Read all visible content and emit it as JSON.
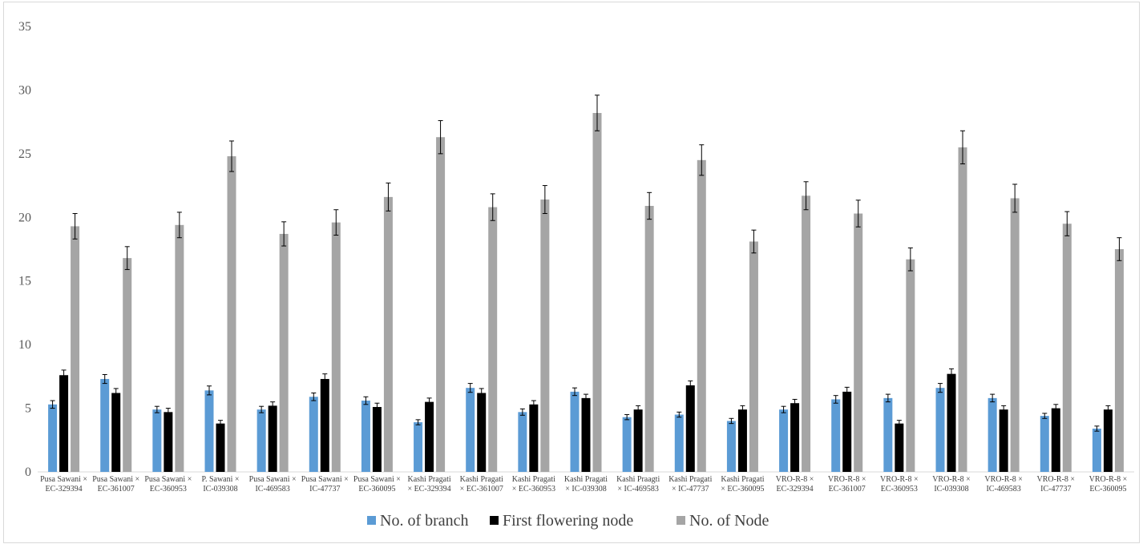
{
  "chart_data": {
    "type": "bar",
    "categories": [
      [
        "Pusa Sawani ×",
        "EC-329394"
      ],
      [
        "Pusa Sawani ×",
        "EC-361007"
      ],
      [
        "Pusa Sawani ×",
        "EC-360953"
      ],
      [
        "P. Sawani ×",
        "IC-039308"
      ],
      [
        "Pusa Sawani ×",
        "IC-469583"
      ],
      [
        "Pusa Sawani ×",
        "IC-47737"
      ],
      [
        "Pusa Sawani ×",
        "EC-360095"
      ],
      [
        "Kashi Pragati",
        "× EC-329394"
      ],
      [
        "Kashi Pragati",
        "× EC-361007"
      ],
      [
        "Kashi Pragati",
        "× EC-360953"
      ],
      [
        "Kashi Pragati",
        "× IC-039308"
      ],
      [
        "Kashi Praagti",
        "× IC-469583"
      ],
      [
        "Kashi Pragati",
        "× IC-47737"
      ],
      [
        "Kashi Pragati",
        "× EC-360095"
      ],
      [
        "VRO-R-8 ×",
        "EC-329394"
      ],
      [
        "VRO-R-8 ×",
        "EC-361007"
      ],
      [
        "VRO-R-8 ×",
        "EC-360953"
      ],
      [
        "VRO-R-8 ×",
        "IC-039308"
      ],
      [
        "VRO-R-8 ×",
        "IC-469583"
      ],
      [
        "VRO-R-8 ×",
        "IC-47737"
      ],
      [
        "VRO-R-8 ×",
        "EC-360095"
      ]
    ],
    "series": [
      {
        "name": "No. of branch",
        "color": "#5b9bd5",
        "values": [
          5.3,
          7.3,
          4.9,
          6.4,
          4.9,
          5.9,
          5.6,
          3.9,
          6.6,
          4.7,
          6.3,
          4.3,
          4.5,
          4.0,
          4.9,
          5.7,
          5.8,
          6.6,
          5.8,
          4.4,
          3.4
        ],
        "errors": [
          0.3,
          0.35,
          0.25,
          0.35,
          0.25,
          0.3,
          0.3,
          0.2,
          0.35,
          0.25,
          0.3,
          0.2,
          0.2,
          0.2,
          0.25,
          0.3,
          0.3,
          0.35,
          0.3,
          0.2,
          0.2
        ]
      },
      {
        "name": "First flowering node",
        "color": "#000000",
        "values": [
          7.6,
          6.2,
          4.7,
          3.8,
          5.2,
          7.3,
          5.1,
          5.5,
          6.2,
          5.3,
          5.8,
          4.9,
          6.8,
          4.9,
          5.4,
          6.3,
          3.8,
          7.7,
          4.9,
          5.0,
          4.9
        ],
        "errors": [
          0.4,
          0.35,
          0.3,
          0.25,
          0.3,
          0.4,
          0.3,
          0.3,
          0.35,
          0.3,
          0.3,
          0.3,
          0.35,
          0.3,
          0.3,
          0.35,
          0.25,
          0.4,
          0.3,
          0.3,
          0.3
        ]
      },
      {
        "name": "No. of Node",
        "color": "#a5a5a5",
        "values": [
          19.3,
          16.8,
          19.4,
          24.8,
          18.7,
          19.6,
          21.6,
          26.3,
          20.8,
          21.4,
          28.2,
          20.9,
          24.5,
          18.1,
          21.7,
          20.3,
          16.7,
          25.5,
          21.5,
          19.5,
          17.5
        ],
        "errors": [
          1.0,
          0.9,
          1.0,
          1.2,
          0.95,
          1.0,
          1.1,
          1.3,
          1.05,
          1.1,
          1.4,
          1.05,
          1.2,
          0.9,
          1.1,
          1.05,
          0.9,
          1.3,
          1.1,
          0.95,
          0.9
        ]
      }
    ],
    "yticks": [
      "0",
      "5",
      "10",
      "15",
      "20",
      "25",
      "30",
      "35"
    ],
    "ylim": [
      0,
      35
    ],
    "grid": false,
    "legend_position": "bottom",
    "title": "",
    "xlabel": "",
    "ylabel": ""
  }
}
